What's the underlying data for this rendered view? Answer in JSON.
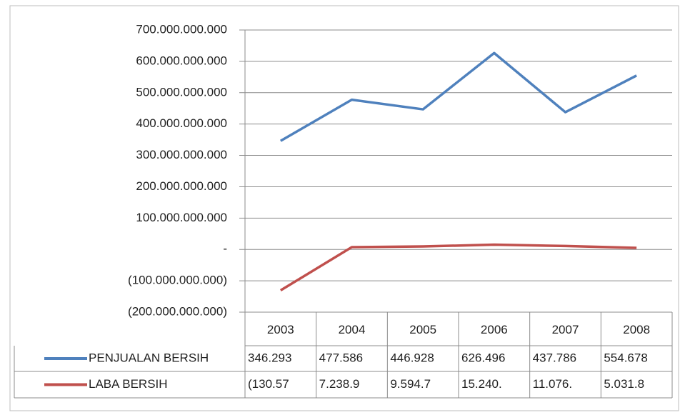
{
  "chart_data": {
    "type": "line",
    "categories": [
      "2003",
      "2004",
      "2005",
      "2006",
      "2007",
      "2008"
    ],
    "series": [
      {
        "name": "PENJUALAN BERSIH",
        "color": "#4f81bd",
        "values": [
          346293000000,
          477586000000,
          446928000000,
          626496000000,
          437786000000,
          554678000000
        ],
        "value_labels": [
          "346.293",
          "477.586",
          "446.928",
          "626.496",
          "437.786",
          "554.678"
        ]
      },
      {
        "name": "LABA BERSIH",
        "color": "#c0504d",
        "values": [
          -130570000000,
          7238900000,
          9594700000,
          15240000000,
          11076000000,
          5031800000
        ],
        "value_labels": [
          "(130.57",
          "7.238.9",
          "9.594.7",
          "15.240.",
          "11.076.",
          "5.031.8"
        ]
      }
    ],
    "ylim": [
      -200000000000,
      700000000000
    ],
    "yticks": [
      {
        "value": 700000000000,
        "label": "700.000.000.000"
      },
      {
        "value": 600000000000,
        "label": "600.000.000.000"
      },
      {
        "value": 500000000000,
        "label": "500.000.000.000"
      },
      {
        "value": 400000000000,
        "label": "400.000.000.000"
      },
      {
        "value": 300000000000,
        "label": "300.000.000.000"
      },
      {
        "value": 200000000000,
        "label": "200.000.000.000"
      },
      {
        "value": 100000000000,
        "label": "100.000.000.000"
      },
      {
        "value": 0,
        "label": "-"
      },
      {
        "value": -100000000000,
        "label": "(100.000.000.000)"
      },
      {
        "value": -200000000000,
        "label": "(200.000.000.000)"
      }
    ],
    "grid": true
  }
}
